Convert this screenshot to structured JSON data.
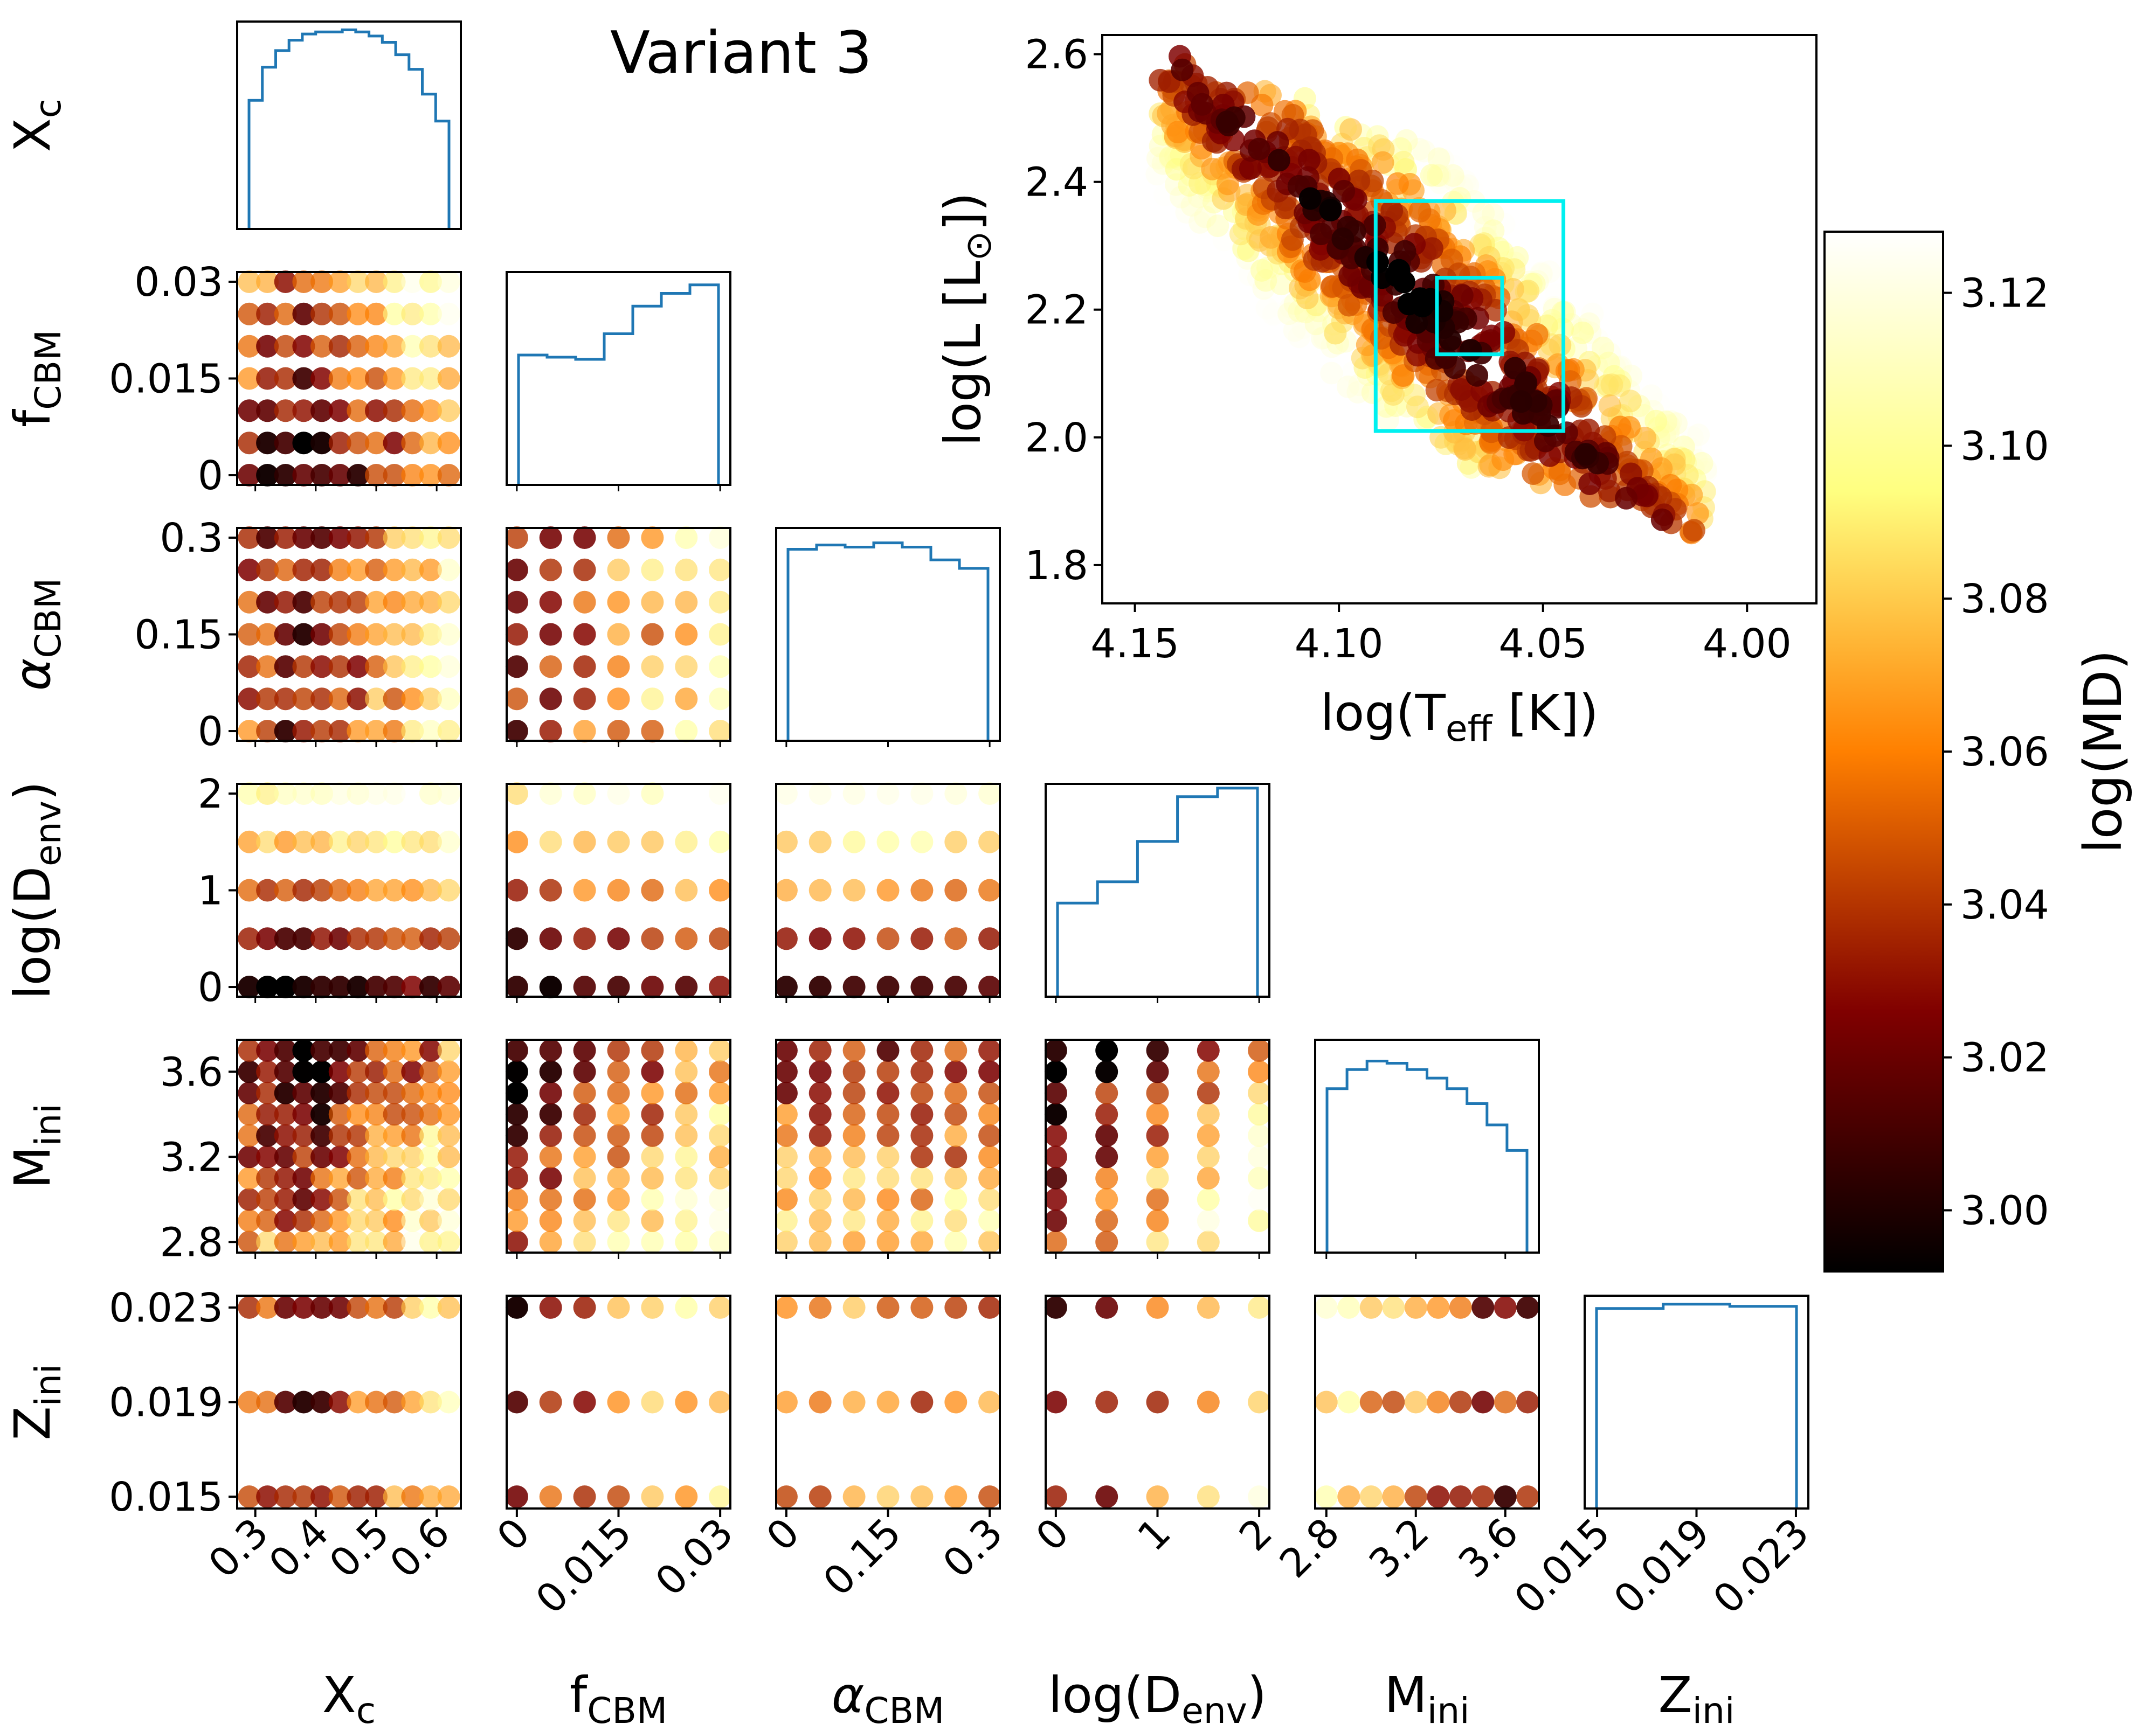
{
  "title": "Variant 3",
  "colors": {
    "hist_line": "#1f77b4",
    "error_box": "#00f0f0",
    "axis": "#000000"
  },
  "colormap": "afmhot",
  "colorbar": {
    "label": "log(MD)",
    "range": [
      2.992,
      3.128
    ],
    "ticks": [
      "3.00",
      "3.02",
      "3.04",
      "3.06",
      "3.08",
      "3.10",
      "3.12"
    ],
    "tick_values": [
      3.0,
      3.02,
      3.04,
      3.06,
      3.08,
      3.1,
      3.12
    ]
  },
  "parameters": [
    {
      "id": "Xc",
      "symbol": "X",
      "sub": "c",
      "italic": false,
      "label_plain": "Xc",
      "values": [
        0.29,
        0.32,
        0.35,
        0.38,
        0.41,
        0.44,
        0.47,
        0.5,
        0.53,
        0.56,
        0.59,
        0.62
      ],
      "range": [
        0.27,
        0.64
      ],
      "ticks": [
        0.3,
        0.4,
        0.5,
        0.6
      ],
      "tick_labels": [
        "0.3",
        "0.4",
        "0.5",
        "0.6"
      ]
    },
    {
      "id": "fCBM",
      "symbol": "f",
      "sub": "CBM",
      "italic": false,
      "label_plain": "fCBM",
      "values": [
        0,
        0.005,
        0.01,
        0.015,
        0.02,
        0.025,
        0.03
      ],
      "range": [
        -0.0015,
        0.0315
      ],
      "ticks": [
        0,
        0.015,
        0.03
      ],
      "tick_labels": [
        "0",
        "0.015",
        "0.03"
      ]
    },
    {
      "id": "aCBM",
      "symbol": "α",
      "sub": "CBM",
      "italic": true,
      "label_plain": "αCBM",
      "values": [
        0,
        0.05,
        0.1,
        0.15,
        0.2,
        0.25,
        0.3
      ],
      "range": [
        -0.015,
        0.315
      ],
      "ticks": [
        0,
        0.15,
        0.3
      ],
      "tick_labels": [
        "0",
        "0.15",
        "0.3"
      ]
    },
    {
      "id": "Denv",
      "symbol": "log(D",
      "sub": "env",
      "suffix": ")",
      "italic": false,
      "label_plain": "log(Denv)",
      "values": [
        0,
        0.5,
        1,
        1.5,
        2
      ],
      "range": [
        -0.1,
        2.1
      ],
      "ticks": [
        0,
        1,
        2
      ],
      "tick_labels": [
        "0",
        "1",
        "2"
      ]
    },
    {
      "id": "Mini",
      "symbol": "M",
      "sub": "ini",
      "italic": false,
      "label_plain": "Mini",
      "values": [
        2.8,
        2.9,
        3.0,
        3.1,
        3.2,
        3.3,
        3.4,
        3.5,
        3.6,
        3.7
      ],
      "range": [
        2.75,
        3.75
      ],
      "ticks": [
        2.8,
        3.2,
        3.6
      ],
      "tick_labels": [
        "2.8",
        "3.2",
        "3.6"
      ]
    },
    {
      "id": "Zini",
      "symbol": "Z",
      "sub": "ini",
      "italic": false,
      "label_plain": "Zini",
      "values": [
        0.015,
        0.019,
        0.023
      ],
      "range": [
        0.0145,
        0.0235
      ],
      "ticks": [
        0.015,
        0.019,
        0.023
      ],
      "tick_labels": [
        "0.015",
        "0.019",
        "0.023"
      ]
    }
  ],
  "hr_diagram": {
    "xlabel_symbol": "log(T",
    "xlabel_sub": "eff",
    "xlabel_suffix": " [K])",
    "ylabel": "log(L [L",
    "ylabel_sub": "⊙",
    "ylabel_suffix": "])",
    "xlim": [
      4.158,
      3.983
    ],
    "ylim": [
      1.74,
      2.63
    ],
    "xticks": [
      4.15,
      4.1,
      4.05,
      4.0
    ],
    "xtick_labels": [
      "4.15",
      "4.10",
      "4.05",
      "4.00"
    ],
    "yticks": [
      1.8,
      2.0,
      2.2,
      2.4,
      2.6
    ],
    "ytick_labels": [
      "1.8",
      "2.0",
      "2.2",
      "2.4",
      "2.6"
    ],
    "error_boxes": [
      {
        "logTeff": [
          4.091,
          4.045
        ],
        "logL": [
          2.01,
          2.37
        ]
      },
      {
        "logTeff": [
          4.076,
          4.06
        ],
        "logL": [
          2.13,
          2.25
        ]
      }
    ]
  },
  "chart_data": {
    "type": "scatter",
    "title": "Variant 3",
    "description_of_panels": "corner plot of best-model parameters coloured by log(MD); diagonal panels are histograms; inset is an HR diagram",
    "histograms": {
      "Xc": [
        0.62,
        0.78,
        0.86,
        0.91,
        0.94,
        0.95,
        0.95,
        0.96,
        0.95,
        0.93,
        0.9,
        0.84,
        0.77,
        0.65,
        0.52
      ],
      "fCBM": [
        0.61,
        0.6,
        0.59,
        0.71,
        0.84,
        0.9,
        0.94
      ],
      "aCBM": [
        0.9,
        0.92,
        0.91,
        0.93,
        0.91,
        0.85,
        0.81
      ],
      "Denv": [
        0.44,
        0.54,
        0.73,
        0.94,
        0.98
      ],
      "Mini": [
        0.77,
        0.86,
        0.9,
        0.89,
        0.86,
        0.82,
        0.77,
        0.7,
        0.6,
        0.48
      ],
      "Zini": [
        0.94,
        0.96,
        0.95
      ]
    },
    "scatter_note": "each dot is one model grid point; colour encodes log(MD) (values 2.99 to 3.13)"
  }
}
